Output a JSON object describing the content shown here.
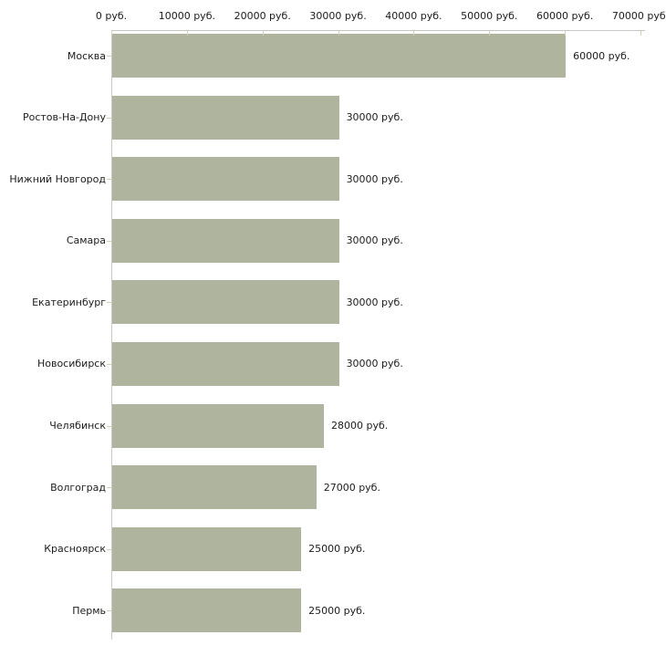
{
  "chart_data": {
    "type": "bar",
    "orientation": "horizontal",
    "title": "",
    "xlabel": "",
    "ylabel": "",
    "unit": "руб.",
    "xlim": [
      0,
      70000
    ],
    "x_tick_values": [
      0,
      10000,
      20000,
      30000,
      40000,
      50000,
      60000,
      70000
    ],
    "x_tick_labels": [
      "0 руб.",
      "10000 руб.",
      "20000 руб.",
      "30000 руб.",
      "40000 руб.",
      "50000 руб.",
      "60000 руб.",
      "70000 руб."
    ],
    "categories": [
      "Москва",
      "Ростов-На-Дону",
      "Нижний Новгород",
      "Самара",
      "Екатеринбург",
      "Новосибирск",
      "Челябинск",
      "Волгоград",
      "Красноярск",
      "Пермь"
    ],
    "values": [
      60000,
      30000,
      30000,
      30000,
      30000,
      30000,
      28000,
      27000,
      25000,
      25000
    ],
    "value_labels": [
      "60000 руб.",
      "30000 руб.",
      "30000 руб.",
      "30000 руб.",
      "30000 руб.",
      "30000 руб.",
      "28000 руб.",
      "27000 руб.",
      "25000 руб.",
      "25000 руб."
    ],
    "grid": false,
    "legend": false,
    "colors": {
      "bar_fill": "#aeb49d",
      "axis_line": "#c6c6c6",
      "tick_mark": "#d2d2b4",
      "text": "#1c1c1c",
      "background": "#ffffff"
    }
  }
}
